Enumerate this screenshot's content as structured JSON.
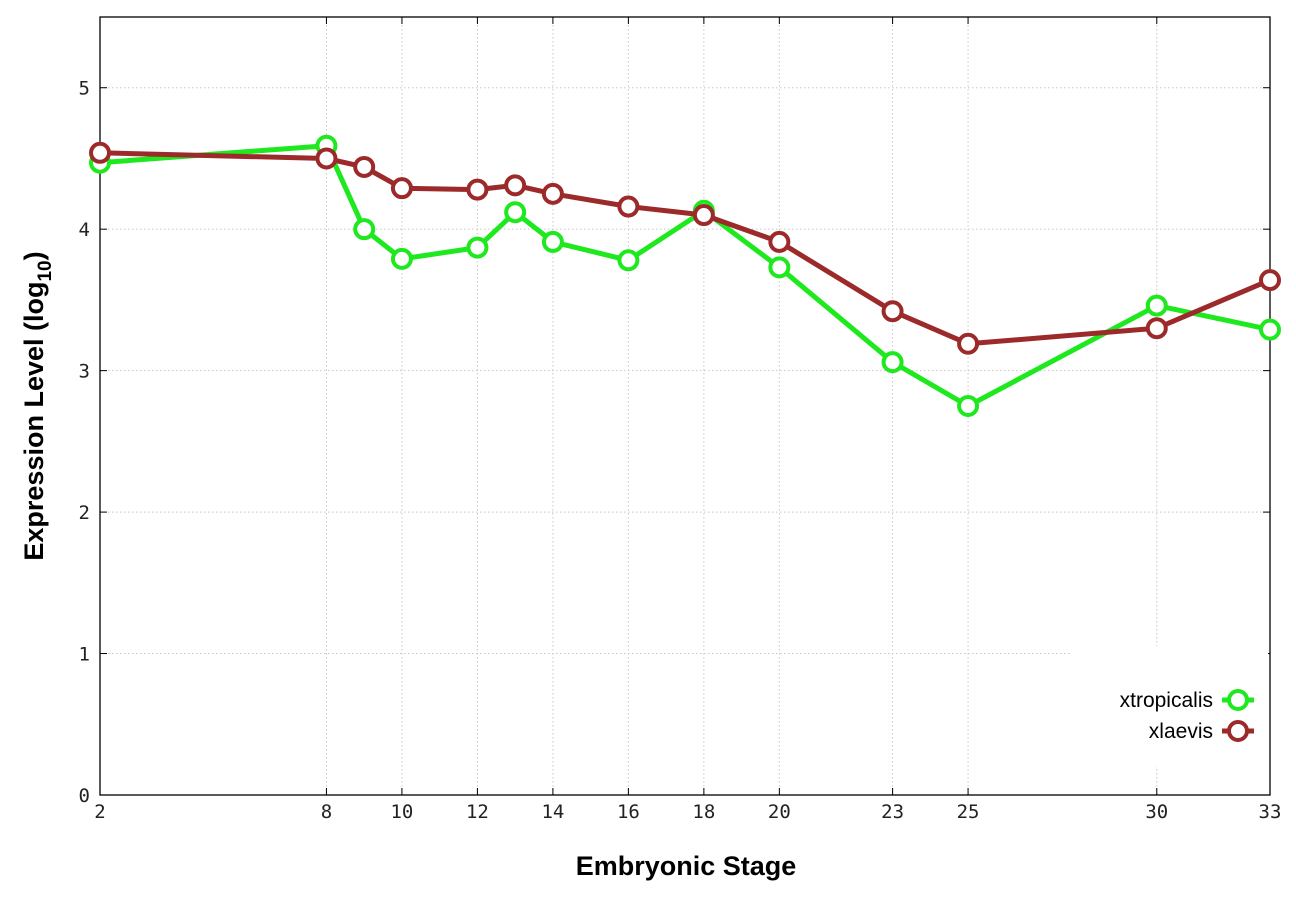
{
  "chart_data": {
    "type": "line",
    "xlabel": "Embryonic Stage",
    "ylabel_main": "Expression Level (log",
    "ylabel_sub": "10",
    "ylabel_close": ")",
    "xlim": [
      2,
      33
    ],
    "ylim": [
      0,
      5.5
    ],
    "x_ticks": [
      2,
      8,
      10,
      12,
      14,
      16,
      18,
      20,
      23,
      25,
      30,
      33
    ],
    "y_ticks": [
      0,
      1,
      2,
      3,
      4,
      5
    ],
    "grid": true,
    "legend_position": "bottom-right",
    "series": [
      {
        "name": "xtropicalis",
        "color": "#1ee81e",
        "x": [
          2,
          8,
          9,
          10,
          12,
          13,
          14,
          16,
          18,
          20,
          23,
          25,
          30,
          33
        ],
        "y": [
          4.47,
          4.59,
          4.0,
          3.79,
          3.87,
          4.12,
          3.91,
          3.78,
          4.13,
          3.73,
          3.06,
          2.75,
          3.46,
          3.29
        ]
      },
      {
        "name": "xlaevis",
        "color": "#9c2a2a",
        "x": [
          2,
          8,
          9,
          10,
          12,
          13,
          14,
          16,
          18,
          20,
          23,
          25,
          30,
          33
        ],
        "y": [
          4.54,
          4.5,
          4.44,
          4.29,
          4.28,
          4.31,
          4.25,
          4.16,
          4.1,
          3.91,
          3.42,
          3.19,
          3.3,
          3.64
        ]
      }
    ]
  }
}
